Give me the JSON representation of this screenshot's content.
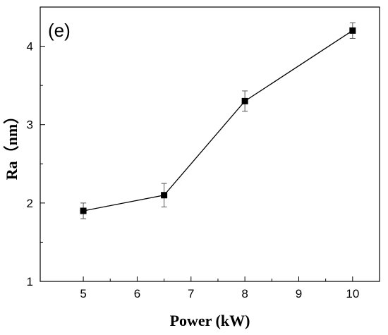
{
  "panel_label": "(e)",
  "chart_data": {
    "type": "line",
    "xlabel": "Power (kW)",
    "ylabel": "Ra（nm）",
    "xlim": [
      4.2,
      10.5
    ],
    "ylim": [
      1,
      4.5
    ],
    "x_ticks": [
      5,
      6,
      7,
      8,
      9,
      10
    ],
    "y_ticks": [
      1,
      2,
      3,
      4
    ],
    "grid": false,
    "series": [
      {
        "x": [
          5,
          6.5,
          8,
          10
        ],
        "y": [
          1.9,
          2.1,
          3.3,
          4.2
        ],
        "err": [
          0.1,
          0.15,
          0.13,
          0.1
        ],
        "marker": "square",
        "color": "#000000"
      }
    ]
  }
}
